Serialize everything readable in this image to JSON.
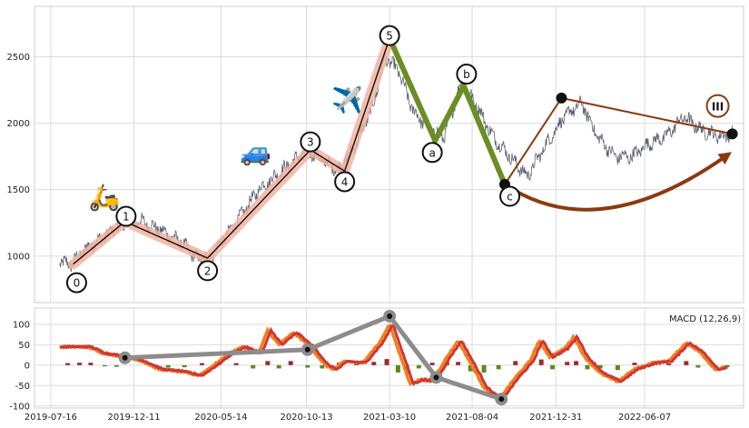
{
  "chart_data": [
    {
      "type": "line",
      "panel": "price",
      "x_tick_labels": [
        "2019-07-16",
        "2019-12-11",
        "2020-05-14",
        "2020-10-13",
        "2021-03-10",
        "2021-08-04",
        "2021-12-31",
        "2022-06-07"
      ],
      "x_ticks": [
        "2019-07-16",
        "2019-12-11",
        "2020-05-14",
        "2020-10-13",
        "2021-03-10",
        "2021-08-04",
        "2021-12-31",
        "2022-06-07"
      ],
      "y_ticks": [
        1000,
        1500,
        2000,
        2500
      ],
      "xlim": [
        "2019-06-17",
        "2022-11-30"
      ],
      "ylim": [
        650,
        2880
      ],
      "grid": true,
      "price_series_color": "#5a6070",
      "price_series_anchors": [
        [
          "2019-08-01",
          960
        ],
        [
          "2019-08-20",
          935
        ],
        [
          "2019-09-15",
          1050
        ],
        [
          "2019-10-20",
          1150
        ],
        [
          "2019-11-25",
          1250
        ],
        [
          "2019-12-25",
          1260
        ],
        [
          "2020-01-25",
          1200
        ],
        [
          "2020-03-05",
          1100
        ],
        [
          "2020-04-01",
          980
        ],
        [
          "2020-04-25",
          1000
        ],
        [
          "2020-06-10",
          1250
        ],
        [
          "2020-07-20",
          1500
        ],
        [
          "2020-09-10",
          1680
        ],
        [
          "2020-10-15",
          1800
        ],
        [
          "2020-11-10",
          1720
        ],
        [
          "2020-12-10",
          1650
        ],
        [
          "2021-01-10",
          1850
        ],
        [
          "2021-02-10",
          2150
        ],
        [
          "2021-03-01",
          2500
        ],
        [
          "2021-03-25",
          2400
        ],
        [
          "2021-04-20",
          2100
        ],
        [
          "2021-05-20",
          1950
        ],
        [
          "2021-06-15",
          1900
        ],
        [
          "2021-07-15",
          2300
        ],
        [
          "2021-08-10",
          2150
        ],
        [
          "2021-09-10",
          1900
        ],
        [
          "2021-10-10",
          1750
        ],
        [
          "2021-11-10",
          1600
        ],
        [
          "2021-12-15",
          1850
        ],
        [
          "2022-01-15",
          2050
        ],
        [
          "2022-02-15",
          2150
        ],
        [
          "2022-03-15",
          1900
        ],
        [
          "2022-04-15",
          1750
        ],
        [
          "2022-05-15",
          1750
        ],
        [
          "2022-06-15",
          1850
        ],
        [
          "2022-07-15",
          1900
        ],
        [
          "2022-08-15",
          2050
        ],
        [
          "2022-09-15",
          1950
        ],
        [
          "2022-10-20",
          1900
        ],
        [
          "2022-11-10",
          1920
        ]
      ],
      "impulse_waves": [
        {
          "label": "0",
          "date": "2019-08-25",
          "value": 940,
          "marker_date": "2019-08-31",
          "marker_value": 800
        },
        {
          "label": "1",
          "date": "2019-11-25",
          "value": 1260,
          "marker_date": "2019-11-27",
          "marker_value": 1300
        },
        {
          "label": "2",
          "date": "2020-04-20",
          "value": 985,
          "marker_date": "2020-04-20",
          "marker_value": 890
        },
        {
          "label": "3",
          "date": "2020-10-20",
          "value": 1800,
          "marker_date": "2020-10-20",
          "marker_value": 1860
        },
        {
          "label": "4",
          "date": "2020-12-20",
          "value": 1640,
          "marker_date": "2020-12-20",
          "marker_value": 1560
        },
        {
          "label": "5",
          "date": "2021-03-10",
          "value": 2640,
          "marker_date": "2021-03-10",
          "marker_value": 2660
        }
      ],
      "impulse_line_color": "#111111",
      "impulse_band_color": "#f2b3a0",
      "corrective_waves": [
        {
          "label": "a",
          "date": "2021-05-30",
          "value": 1870,
          "marker_date": "2021-05-25",
          "marker_value": 1780
        },
        {
          "label": "b",
          "date": "2021-07-20",
          "value": 2280,
          "marker_date": "2021-07-25",
          "marker_value": 2370
        },
        {
          "label": "c",
          "date": "2021-10-01",
          "value": 1540,
          "marker_date": "2021-10-10",
          "marker_value": 1450
        }
      ],
      "corrective_color": "#6b8e23",
      "projection": {
        "color": "#8b3a0e",
        "lines": [
          [
            [
              "2021-10-01",
              1540
            ],
            [
              "2022-01-10",
              2190
            ]
          ],
          [
            [
              "2022-01-10",
              2190
            ],
            [
              "2022-11-10",
              1920
            ]
          ]
        ],
        "arc_points": [
          [
            "2021-10-01",
            1540
          ],
          [
            "2022-04-01",
            1360
          ],
          [
            "2022-11-01",
            1760
          ]
        ],
        "dots": [
          [
            "2021-10-01",
            1540
          ],
          [
            "2022-01-10",
            2190
          ],
          [
            "2022-11-10",
            1920
          ]
        ],
        "roman_label": "III",
        "roman_date": "2022-10-15",
        "roman_value": 2130
      },
      "emojis": [
        {
          "name": "scooter",
          "char": "🛵",
          "date": "2019-10-20",
          "value": 1380
        },
        {
          "name": "car",
          "char": "🚙",
          "date": "2020-07-15",
          "value": 1720
        },
        {
          "name": "airplane",
          "char": "✈️",
          "date": "2020-12-25",
          "value": 2110
        }
      ]
    },
    {
      "type": "line",
      "panel": "macd",
      "title": "MACD (12,26,9)",
      "y_ticks": [
        100,
        50,
        0,
        -50,
        -100
      ],
      "ylim": [
        -105,
        140
      ],
      "grid": true,
      "macd_color": "#f08020",
      "signal_color": "#d03535",
      "hist_pos_color": "#9b2a2a",
      "hist_neg_color": "#5a8a20",
      "macd_anchors": [
        [
          "2019-08-01",
          45
        ],
        [
          "2019-09-20",
          45
        ],
        [
          "2019-10-15",
          30
        ],
        [
          "2019-11-25",
          20
        ],
        [
          "2019-12-25",
          10
        ],
        [
          "2020-01-25",
          -10
        ],
        [
          "2020-03-01",
          -15
        ],
        [
          "2020-04-05",
          -25
        ],
        [
          "2020-05-01",
          0
        ],
        [
          "2020-05-25",
          25
        ],
        [
          "2020-06-20",
          45
        ],
        [
          "2020-07-20",
          30
        ],
        [
          "2020-08-05",
          85
        ],
        [
          "2020-08-25",
          50
        ],
        [
          "2020-09-20",
          80
        ],
        [
          "2020-10-20",
          45
        ],
        [
          "2020-11-15",
          0
        ],
        [
          "2020-12-01",
          -10
        ],
        [
          "2020-12-20",
          10
        ],
        [
          "2021-01-20",
          5
        ],
        [
          "2021-02-20",
          55
        ],
        [
          "2021-03-10",
          100
        ],
        [
          "2021-03-25",
          40
        ],
        [
          "2021-04-15",
          -45
        ],
        [
          "2021-05-05",
          -35
        ],
        [
          "2021-05-25",
          -40
        ],
        [
          "2021-06-20",
          20
        ],
        [
          "2021-07-10",
          60
        ],
        [
          "2021-08-01",
          5
        ],
        [
          "2021-08-25",
          -55
        ],
        [
          "2021-09-20",
          -85
        ],
        [
          "2021-10-20",
          -30
        ],
        [
          "2021-11-15",
          10
        ],
        [
          "2021-12-01",
          60
        ],
        [
          "2021-12-20",
          20
        ],
        [
          "2022-01-15",
          40
        ],
        [
          "2022-02-01",
          70
        ],
        [
          "2022-02-20",
          20
        ],
        [
          "2022-03-20",
          -20
        ],
        [
          "2022-04-20",
          -40
        ],
        [
          "2022-05-20",
          -10
        ],
        [
          "2022-06-20",
          5
        ],
        [
          "2022-07-20",
          10
        ],
        [
          "2022-08-20",
          55
        ],
        [
          "2022-09-15",
          30
        ],
        [
          "2022-10-10",
          -10
        ],
        [
          "2022-11-01",
          -5
        ]
      ],
      "histogram": {
        "bar_width_days": 4,
        "bars": [
          [
            "2019-08-15",
            5
          ],
          [
            "2019-09-05",
            6
          ],
          [
            "2019-09-25",
            6
          ],
          [
            "2019-10-20",
            -3
          ],
          [
            "2019-11-10",
            -4
          ],
          [
            "2020-01-10",
            4
          ],
          [
            "2020-02-10",
            -6
          ],
          [
            "2020-03-10",
            -5
          ],
          [
            "2020-04-10",
            5
          ],
          [
            "2020-05-10",
            6
          ],
          [
            "2020-06-10",
            5
          ],
          [
            "2020-07-10",
            -8
          ],
          [
            "2020-08-05",
            10
          ],
          [
            "2020-08-25",
            -8
          ],
          [
            "2020-09-15",
            10
          ],
          [
            "2020-10-15",
            -6
          ],
          [
            "2020-11-10",
            -8
          ],
          [
            "2020-12-10",
            6
          ],
          [
            "2021-01-10",
            5
          ],
          [
            "2021-02-10",
            8
          ],
          [
            "2021-03-05",
            15
          ],
          [
            "2021-03-25",
            -18
          ],
          [
            "2021-04-10",
            -22
          ],
          [
            "2021-05-01",
            -8
          ],
          [
            "2021-05-25",
            6
          ],
          [
            "2021-06-20",
            10
          ],
          [
            "2021-07-10",
            8
          ],
          [
            "2021-08-01",
            -15
          ],
          [
            "2021-08-25",
            -18
          ],
          [
            "2021-09-20",
            -10
          ],
          [
            "2021-10-20",
            10
          ],
          [
            "2021-11-15",
            12
          ],
          [
            "2021-12-05",
            14
          ],
          [
            "2021-12-25",
            -10
          ],
          [
            "2022-01-20",
            8
          ],
          [
            "2022-02-05",
            10
          ],
          [
            "2022-02-25",
            -10
          ],
          [
            "2022-03-20",
            -8
          ],
          [
            "2022-04-20",
            -12
          ],
          [
            "2022-05-20",
            6
          ],
          [
            "2022-06-20",
            5
          ],
          [
            "2022-07-20",
            4
          ],
          [
            "2022-08-20",
            10
          ],
          [
            "2022-09-10",
            -6
          ],
          [
            "2022-10-10",
            -10
          ],
          [
            "2022-11-01",
            -5
          ]
        ]
      },
      "divergence_line_color": "#8c8c8c",
      "divergence_points": [
        [
          "2019-11-25",
          18
        ],
        [
          "2020-10-15",
          38
        ],
        [
          "2021-03-10",
          120
        ],
        [
          "2021-06-01",
          -30
        ],
        [
          "2021-09-25",
          -83
        ]
      ]
    }
  ]
}
